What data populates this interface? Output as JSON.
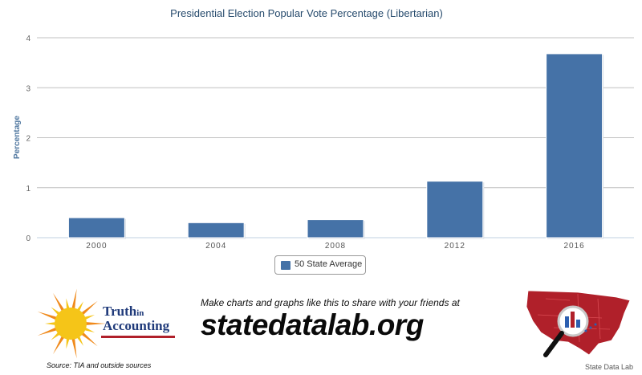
{
  "chart_data": {
    "type": "bar",
    "title": "Presidential Election Popular Vote Percentage (Libertarian)",
    "xlabel": "",
    "ylabel": "Percentage",
    "categories": [
      "2000",
      "2004",
      "2008",
      "2012",
      "2016"
    ],
    "series": [
      {
        "name": "50 State Average",
        "values": [
          0.4,
          0.3,
          0.36,
          1.13,
          3.68
        ],
        "color": "#4572A7"
      }
    ],
    "ylim": [
      0,
      4
    ],
    "yticks": [
      0,
      1,
      2,
      3,
      4
    ],
    "grid": true,
    "legend": "bottom-center"
  },
  "footer": {
    "tia_line1_big": "Truth",
    "tia_line1_small": "in",
    "tia_line2": "Accounting",
    "source": "Source: TIA and outside sources",
    "promo_line": "Make charts and graphs like this to share with your friends at",
    "promo_domain": "statedatalab.org",
    "sdl_label": "State Data Lab"
  },
  "colors": {
    "bar": "#4572A7",
    "grid": "#C0C0C0",
    "map_red": "#b0202a",
    "sun_yellow": "#f5c518",
    "sun_orange": "#f08a1c"
  }
}
